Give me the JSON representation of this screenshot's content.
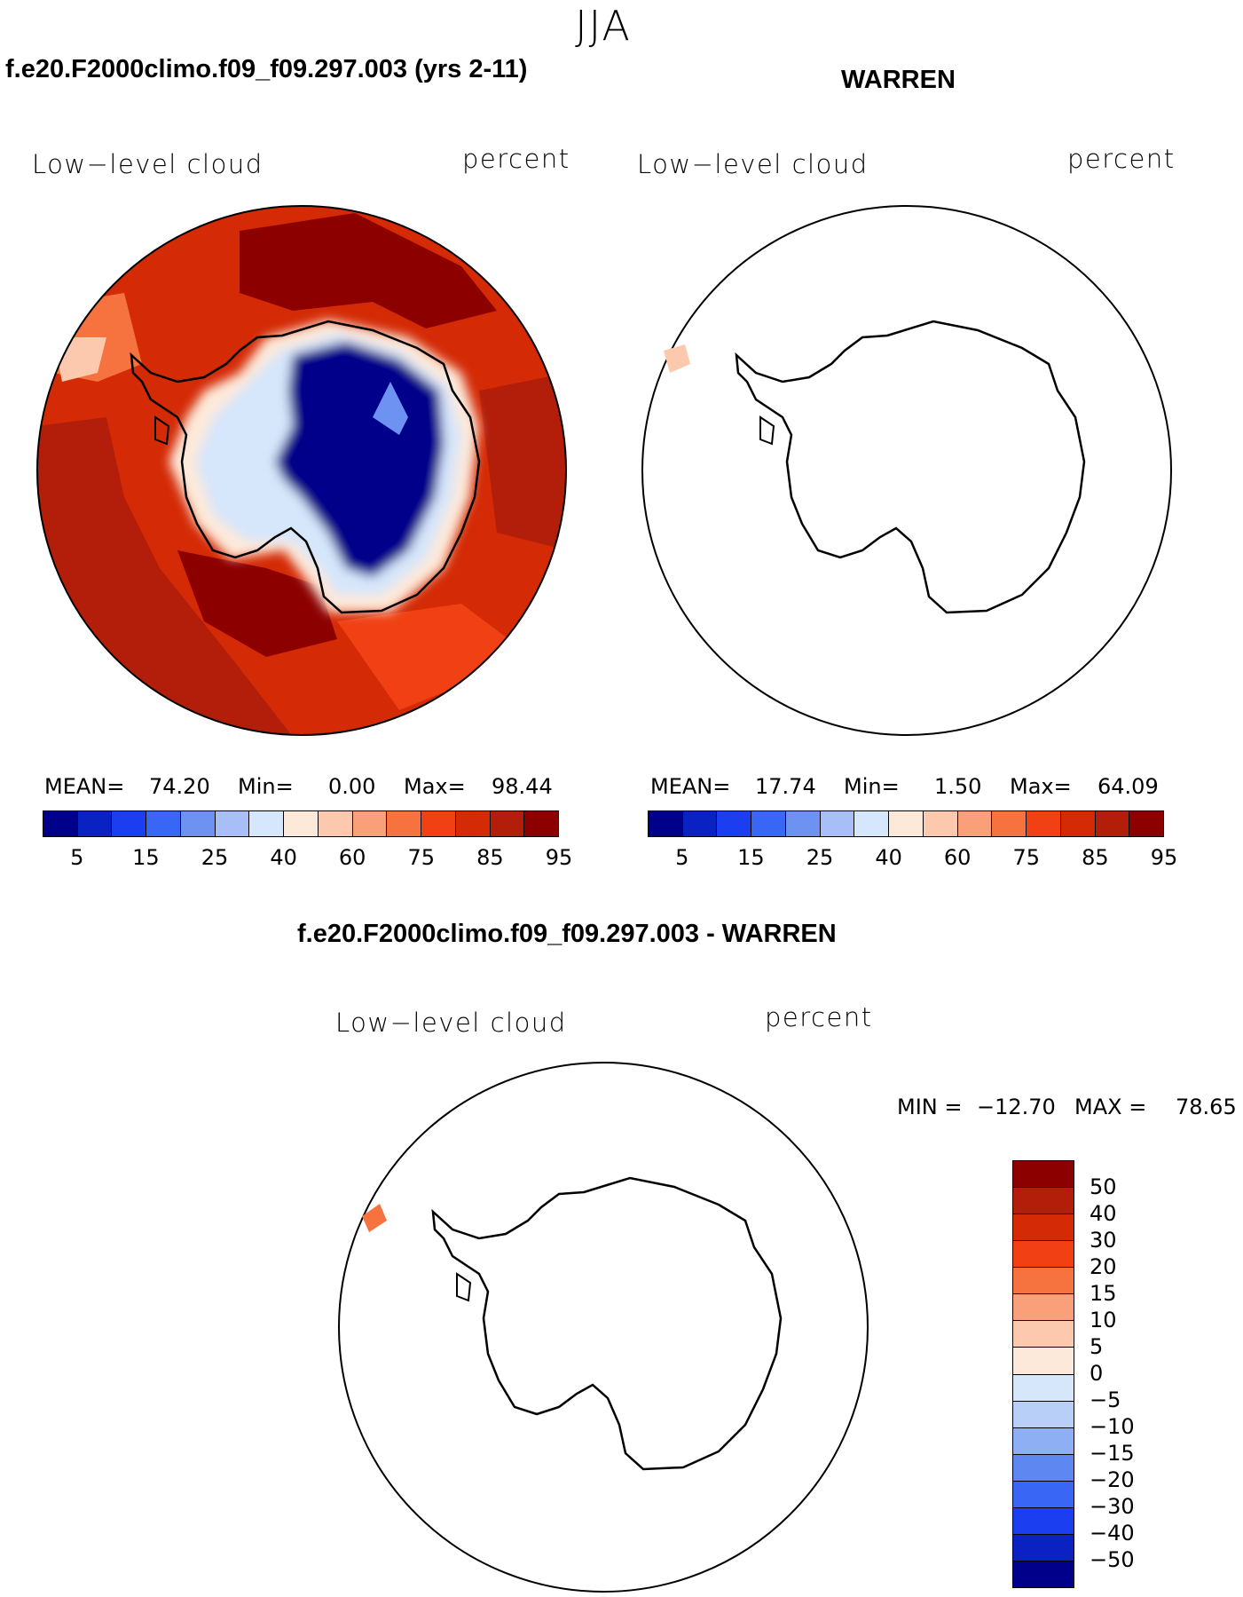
{
  "season": "JJA",
  "panels": [
    {
      "title": "f.e20.F2000climo.f09_f09.297.003 (yrs 2-11)",
      "variable": "Low−level cloud",
      "units": "percent",
      "mean_label": "MEAN=",
      "mean": "74.20",
      "min_label": "Min=",
      "min": "0.00",
      "max_label": "Max=",
      "max": "98.44"
    },
    {
      "title": "WARREN",
      "variable": "Low−level cloud",
      "units": "percent",
      "mean_label": "MEAN=",
      "mean": "17.74",
      "min_label": "Min=",
      "min": "1.50",
      "max_label": "Max=",
      "max": "64.09"
    }
  ],
  "diff_panel": {
    "title": "f.e20.F2000climo.f09_f09.297.003 - WARREN",
    "variable": "Low−level cloud",
    "units": "percent",
    "min_label": "MIN =",
    "min": "−12.70",
    "max_label": "MAX =",
    "max": "78.65"
  },
  "colorbar_top": {
    "colors": [
      "#00008a",
      "#0a22c2",
      "#1b3ff0",
      "#3a66f5",
      "#6e92f2",
      "#a7bff6",
      "#d6e6fb",
      "#fde9d9",
      "#fcc8ae",
      "#f9a07a",
      "#f6723f",
      "#f04014",
      "#d42a06",
      "#b21e0a",
      "#8c0000"
    ],
    "tick_labels": [
      "5",
      "15",
      "25",
      "40",
      "60",
      "75",
      "85",
      "95"
    ]
  },
  "colorbar_diff": {
    "colors": [
      "#8c0000",
      "#b21e0a",
      "#d42a06",
      "#f04014",
      "#f6723f",
      "#f9a07a",
      "#fcc8ae",
      "#fde9d9",
      "#d6e6fb",
      "#b8cff8",
      "#8eaff4",
      "#5e87f2",
      "#3a66f5",
      "#1b3ff0",
      "#0a22c2",
      "#00008a"
    ],
    "tick_labels": [
      "50",
      "40",
      "30",
      "20",
      "15",
      "10",
      "5",
      "0",
      "−5",
      "−10",
      "−15",
      "−20",
      "−30",
      "−40",
      "−50"
    ]
  }
}
